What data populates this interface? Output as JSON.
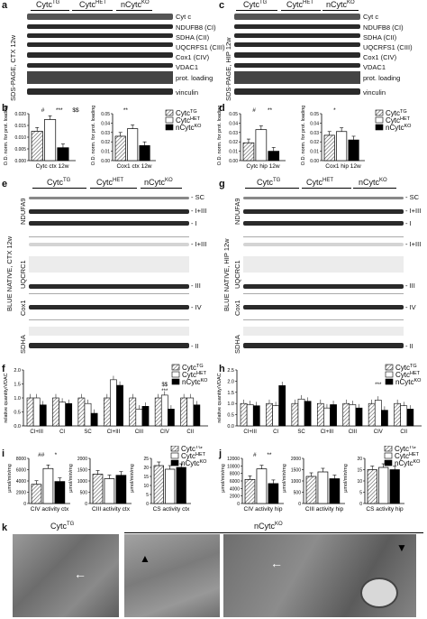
{
  "panels": {
    "a": "a",
    "b": "b",
    "c": "c",
    "d": "d",
    "e": "e",
    "f": "f",
    "g": "g",
    "h": "h",
    "i": "i",
    "j": "j",
    "k": "k"
  },
  "genotypes": {
    "tg": "Cytc",
    "tg_sup": "TG",
    "het": "Cytc",
    "het_sup": "HET",
    "ko": "nCytc",
    "ko_sup": "KO"
  },
  "panel_a": {
    "side": "SDS-PAGE, CTX 12w",
    "rows": [
      "Cyt c",
      "NDUFB8 (CI)",
      "SDHA (CII)",
      "UQCRFS1 (CIII)",
      "Cox1 (CIV)",
      "VDAC1",
      "prot. loading",
      "vinculin"
    ]
  },
  "panel_c": {
    "side": "SDS-PAGE, HIP 12w",
    "rows": [
      "Cyt c",
      "NDUFB8 (CI)",
      "SDHA (CII)",
      "UQCRFS1 (CIII)",
      "Cox1 (CIV)",
      "VDAC1",
      "prot. loading",
      "vinculin"
    ]
  },
  "panel_e": {
    "side": "BLUE NATIVE, CTX 12w",
    "antibodies": [
      "NDUFA9",
      "UQCRC1",
      "Cox1",
      "SDHA"
    ],
    "bands": [
      "SC",
      "I+III",
      "I",
      "I+III",
      "III",
      "IV",
      "II"
    ]
  },
  "panel_g": {
    "side": "BLUE NATIVE, HIP 12w",
    "antibodies": [
      "NDUFA9",
      "UQCRC1",
      "Cox1",
      "SDHA"
    ],
    "bands": [
      "SC",
      "I+III",
      "I",
      "I+III",
      "III",
      "IV",
      "II"
    ]
  },
  "panel_b": {
    "ylabel": "O.D. norm. for prot. loading",
    "charts": [
      {
        "xlabel": "Cytc ctx 12w",
        "values": [
          0.0125,
          0.0175,
          0.0055
        ],
        "ylim": [
          0,
          0.02
        ],
        "ticks": [
          "0.000",
          "0.005",
          "0.010",
          "0.015",
          "0.020"
        ],
        "sig": [
          "#",
          "***",
          "$$"
        ]
      },
      {
        "xlabel": "Cox1 ctx 12w",
        "values": [
          0.026,
          0.034,
          0.016
        ],
        "ylim": [
          0,
          0.05
        ],
        "ticks": [
          "0.00",
          "0.01",
          "0.02",
          "0.03",
          "0.04",
          "0.05"
        ],
        "sig": [
          "**"
        ]
      }
    ]
  },
  "panel_d": {
    "ylabel": "O.D. norm. for prot. loading",
    "charts": [
      {
        "xlabel": "Cytc hip 12w",
        "values": [
          0.019,
          0.033,
          0.01
        ],
        "ylim": [
          0,
          0.05
        ],
        "ticks": [
          "0.00",
          "0.01",
          "0.02",
          "0.03",
          "0.04",
          "0.05"
        ],
        "sig": [
          "#",
          "**"
        ]
      },
      {
        "xlabel": "Cox1 hip 12w",
        "values": [
          0.027,
          0.031,
          0.022
        ],
        "ylim": [
          0,
          0.05
        ],
        "ticks": [
          "0.00",
          "0.01",
          "0.02",
          "0.03",
          "0.04",
          "0.05"
        ],
        "sig": [
          "*"
        ]
      }
    ]
  },
  "chart_data": [
    {
      "type": "bar",
      "panel": "f",
      "ylabel": "relative quantity/VDAC",
      "categories": [
        "CI+III",
        "CI",
        "SC",
        "CI+III",
        "CIII",
        "CIV",
        "CII"
      ],
      "series": [
        {
          "name": "CytcTG",
          "values": [
            1.0,
            1.0,
            1.0,
            1.0,
            1.0,
            1.0,
            1.0
          ]
        },
        {
          "name": "CytcHET",
          "values": [
            1.0,
            0.85,
            0.8,
            1.65,
            0.6,
            1.1,
            1.0
          ]
        },
        {
          "name": "nCytcKO",
          "values": [
            0.75,
            0.8,
            0.45,
            1.45,
            0.7,
            0.6,
            0.75
          ]
        }
      ],
      "ylim": [
        0,
        2.0
      ],
      "yticks": [
        "0.0",
        "0.5",
        "1.0",
        "1.5",
        "2.0"
      ],
      "annotations": [
        "$$",
        "***"
      ]
    },
    {
      "type": "bar",
      "panel": "h",
      "ylabel": "relative quantity/VDAC",
      "categories": [
        "CI+III",
        "CI",
        "SC",
        "CI+III",
        "CIII",
        "CIV",
        "CII"
      ],
      "series": [
        {
          "name": "CytcTG",
          "values": [
            1.0,
            1.0,
            1.0,
            1.0,
            1.0,
            1.0,
            1.0
          ]
        },
        {
          "name": "CytcHET",
          "values": [
            0.95,
            0.9,
            1.2,
            0.8,
            0.95,
            1.15,
            0.9
          ]
        },
        {
          "name": "nCytcKO",
          "values": [
            0.9,
            1.8,
            1.1,
            0.95,
            0.8,
            0.7,
            0.75
          ]
        }
      ],
      "ylim": [
        0,
        2.5
      ],
      "yticks": [
        "0.0",
        "0.5",
        "1.0",
        "1.5",
        "2.0",
        "2.5"
      ],
      "annotations": [
        "***"
      ]
    }
  ],
  "panel_i": {
    "ylabel": "µmol/min/mg",
    "charts": [
      {
        "xlabel": "CIV activity ctx",
        "values": [
          3400,
          6200,
          3900
        ],
        "ylim": [
          0,
          8000
        ],
        "ticks": [
          "0",
          "2000",
          "4000",
          "6000",
          "8000"
        ],
        "sig": [
          "##",
          "*"
        ]
      },
      {
        "xlabel": "CIII activity ctx",
        "values": [
          1300,
          1100,
          1250
        ],
        "ylim": [
          0,
          2000
        ],
        "ticks": [
          "0",
          "500",
          "1000",
          "1500",
          "2000"
        ],
        "sig": []
      },
      {
        "xlabel": "CS activity ctx",
        "values": [
          21,
          19,
          20
        ],
        "ylim": [
          0,
          25
        ],
        "ticks": [
          "0",
          "5",
          "10",
          "15",
          "20",
          "25"
        ],
        "sig": []
      }
    ]
  },
  "panel_j": {
    "ylabel": "µmol/min/mg",
    "charts": [
      {
        "xlabel": "CIV activity hip",
        "values": [
          6400,
          9200,
          5300
        ],
        "ylim": [
          0,
          12000
        ],
        "ticks": [
          "0",
          "2000",
          "4000",
          "6000",
          "8000",
          "10000",
          "12000"
        ],
        "sig": [
          "#",
          "**"
        ]
      },
      {
        "xlabel": "CIII activity hip",
        "values": [
          1200,
          1400,
          1100
        ],
        "ylim": [
          0,
          2000
        ],
        "ticks": [
          "0",
          "500",
          "1000",
          "1500",
          "2000"
        ],
        "sig": []
      },
      {
        "xlabel": "CS activity hip",
        "values": [
          15,
          16,
          15
        ],
        "ylim": [
          0,
          20
        ],
        "ticks": [
          "0",
          "5",
          "10",
          "15",
          "20"
        ],
        "sig": []
      }
    ]
  },
  "panel_k": {
    "left_label": "Cytc",
    "left_sup": "TG",
    "right_label": "nCytc",
    "right_sup": "KO"
  },
  "colors": {
    "tg_fill": "hatched",
    "het_fill": "#ffffff",
    "ko_fill": "#000000"
  }
}
